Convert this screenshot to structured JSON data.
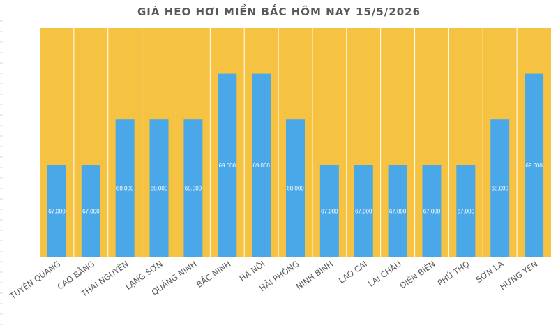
{
  "colors": {
    "plot_background": "#F5C242",
    "bar": "#4AA8E8",
    "column_divider": "#FFFFFF",
    "label_text": "#595959",
    "value_text": "#FFFFFF"
  },
  "chart_data": {
    "type": "bar",
    "title": "GIÁ HEO HƠI MIỀN BẮC HÔM NAY 15/5/2026",
    "xlabel": "",
    "ylabel": "",
    "ylim": [
      65000,
      70000
    ],
    "grid": false,
    "categories": [
      "TUYÊN QUANG",
      "CAO BẰNG",
      "THÁI NGUYÊN",
      "LẠNG SƠN",
      "QUẢNG NINH",
      "BẮC NINH",
      "HÀ NỘI",
      "HẢI PHÒNG",
      "NINH BÌNH",
      "LÀO CAI",
      "LAI CHÂU",
      "ĐIỆN BIÊN",
      "PHÚ THỌ",
      "SƠN LA",
      "HƯNG YÊN"
    ],
    "values": [
      67000,
      67000,
      68000,
      68000,
      68000,
      69000,
      69000,
      68000,
      67000,
      67000,
      67000,
      67000,
      67000,
      68000,
      69000
    ],
    "value_labels": [
      "67.000",
      "67.000",
      "68.000",
      "68.000",
      "68.000",
      "69.000",
      "69.000",
      "68.000",
      "67.000",
      "67.000",
      "67.000",
      "67.000",
      "67.000",
      "68.000",
      "69.000"
    ]
  }
}
